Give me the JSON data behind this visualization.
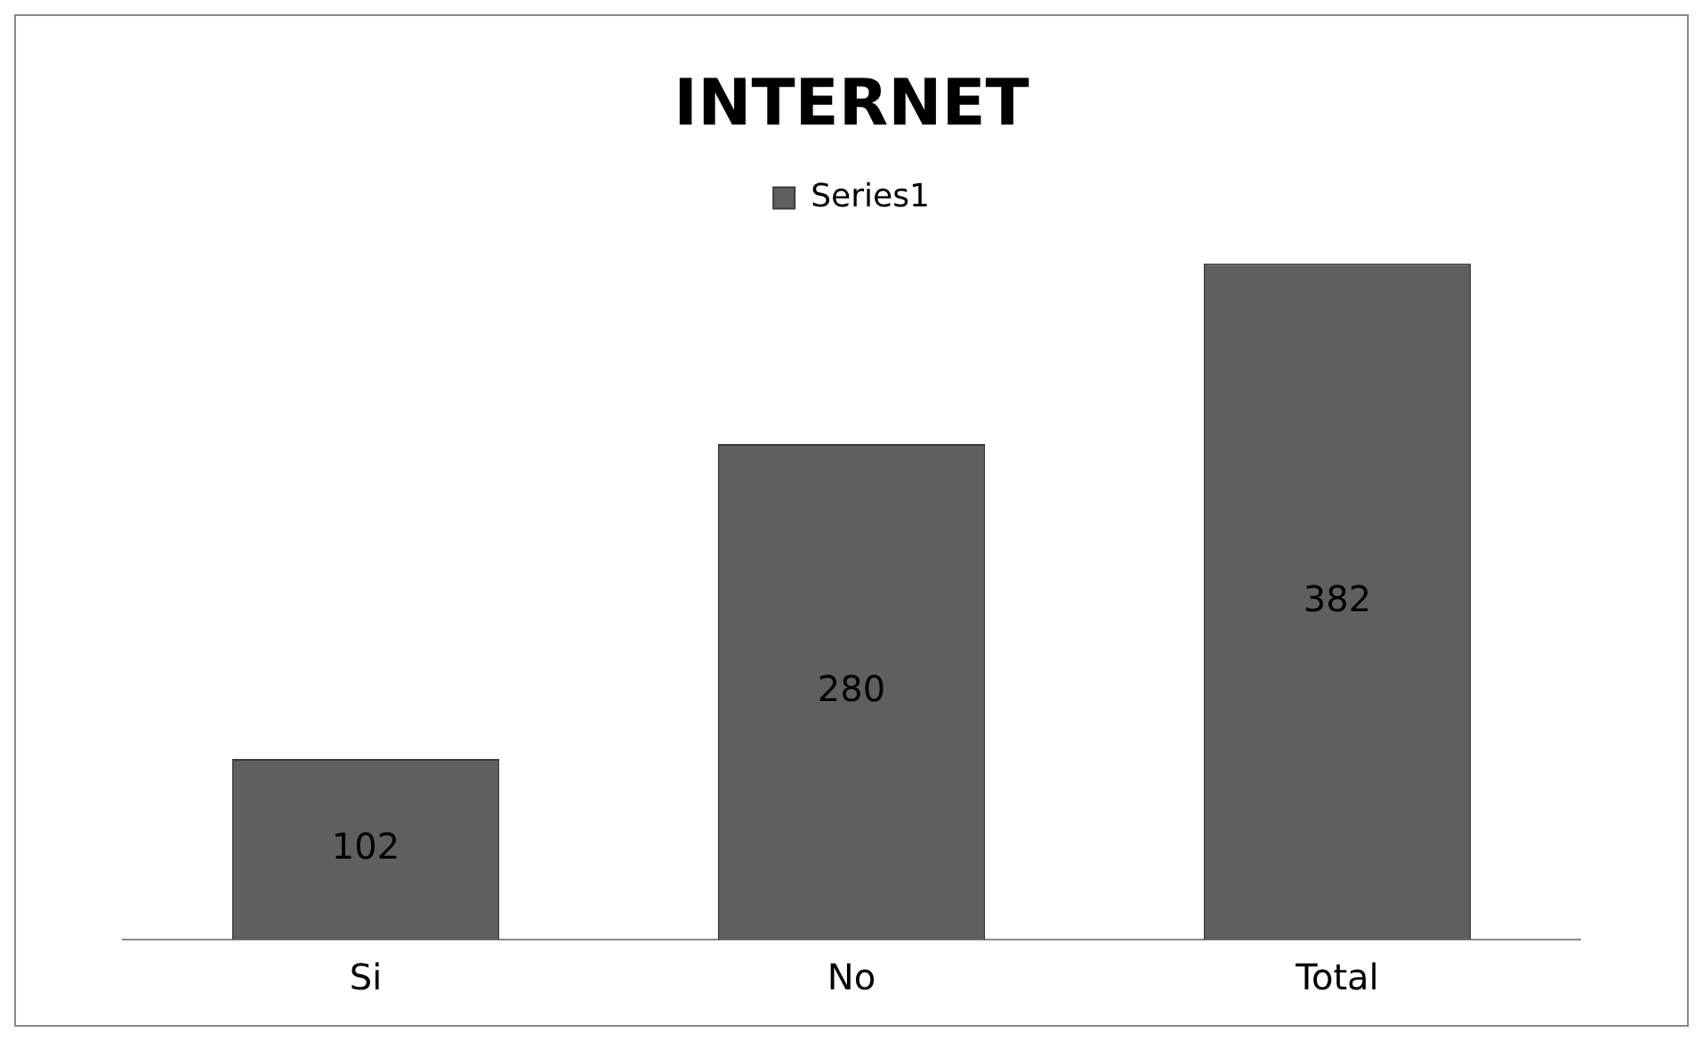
{
  "chart_data": {
    "type": "bar",
    "title": "INTERNET",
    "categories": [
      "Si",
      "No",
      "Total"
    ],
    "series": [
      {
        "name": "Series1",
        "color": "#5f5f5f",
        "values": [
          102,
          280,
          382
        ]
      }
    ],
    "data_labels": true,
    "legend": "top",
    "grid": false
  }
}
